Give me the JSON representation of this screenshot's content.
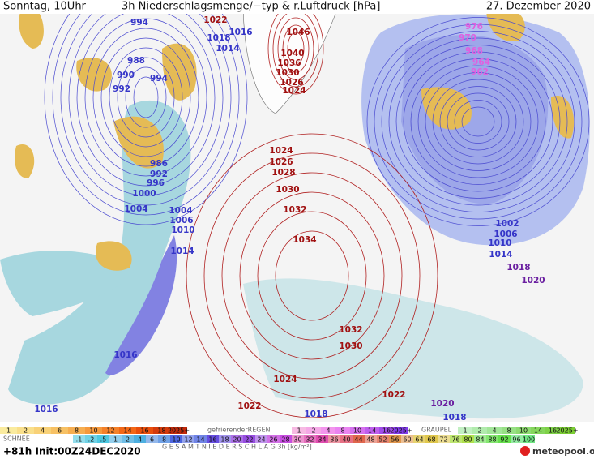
{
  "header": {
    "left": "Sonntag, 10Uhr",
    "title": "3h Niederschlagsmenge/−typ & r.Luftdruck [hPa]",
    "date": "27. Dezember 2020"
  },
  "pressure_labels": [
    {
      "color": "#3535c8",
      "labels": [
        "994",
        "1016",
        "1018",
        "1014",
        "988",
        "990",
        "992",
        "994",
        "986",
        "992",
        "996",
        "1000",
        "1004",
        "1004",
        "1006",
        "1010",
        "1014",
        "1002",
        "1006",
        "1010",
        "1014",
        "1016",
        "1016",
        "1018",
        "1018"
      ]
    },
    {
      "color": "#6a1fa0",
      "labels": [
        "1018",
        "1020",
        "1020"
      ]
    },
    {
      "color": "#a01010",
      "labels": [
        "1022",
        "1046",
        "1040",
        "1036",
        "1030",
        "1026",
        "1024",
        "1024",
        "1026",
        "1028",
        "1030",
        "1032",
        "1034",
        "1032",
        "1030",
        "1024",
        "1022",
        "1022"
      ]
    },
    {
      "color": "#e060e0",
      "labels": [
        "976",
        "970",
        "968",
        "964",
        "962"
      ]
    }
  ],
  "legend": {
    "snow": {
      "name": "SCHNEE",
      "labels": [
        "1",
        "2",
        "4",
        "6",
        "8",
        "10",
        "12",
        "14",
        "16",
        "18",
        "2025+"
      ]
    },
    "freezing_rain": {
      "name": "gefrierenderREGEN",
      "labels": [
        "1",
        "2",
        "4",
        "8",
        "10",
        "14",
        "16",
        "2025+"
      ]
    },
    "graupel": {
      "name": "GRAUPEL",
      "labels": [
        "1",
        "2",
        "4",
        "8",
        "10",
        "14",
        "16",
        "2025+"
      ]
    },
    "total": {
      "name": "G E S A M T N I E D E R S C H L A G   3h   [kg/m²]",
      "labels": [
        ".1",
        ".2",
        ".5",
        "1",
        "2",
        "4",
        "6",
        "8",
        "10",
        "12",
        "14",
        "16",
        "18",
        "20",
        "22",
        "24",
        "26",
        "28",
        "30",
        "32",
        "34",
        "36",
        "40",
        "44",
        "48",
        "52",
        "56",
        "60",
        "64",
        "68",
        "72",
        "76",
        "80",
        "84",
        "88",
        "92",
        "96",
        "100"
      ]
    }
  },
  "footer": {
    "run": "+81h Init:00Z24DEC2020",
    "brand": "meteopool.org"
  }
}
